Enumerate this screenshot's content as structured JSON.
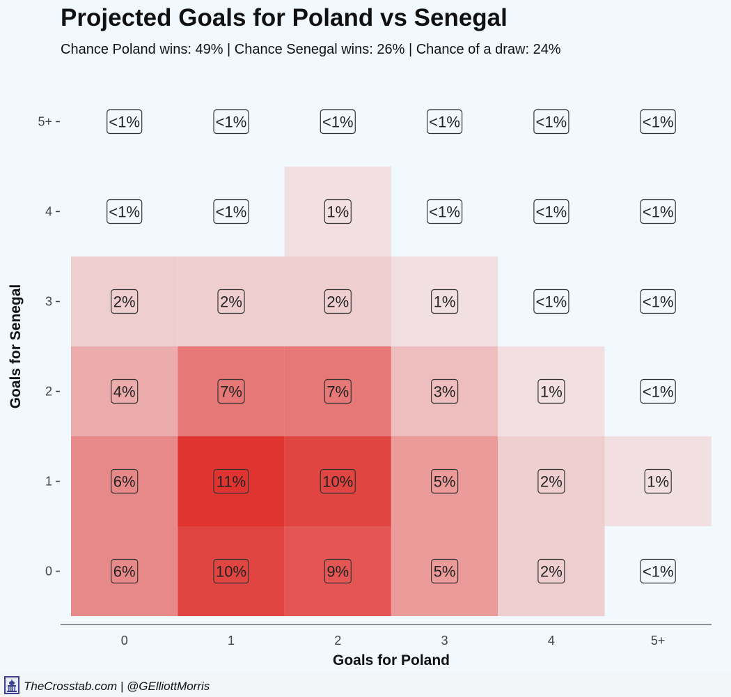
{
  "title": "Projected Goals for Poland vs Senegal",
  "subtitle": "Chance Poland wins: 49% | Chance Senegal wins: 26% | Chance of a draw: 24%",
  "footer": {
    "credit": "TheCrosstab.com | @GElliottMorris",
    "logo_icon": "capitol-icon"
  },
  "colors": {
    "background": "#f1f8fe",
    "low": "#f3f0f3",
    "high": "#df3430",
    "label_border": "#333333"
  },
  "chart_data": {
    "type": "heatmap",
    "title": "Projected Goals for Poland vs Senegal",
    "xlabel": "Goals for Poland",
    "ylabel": "Goals for Senegal",
    "x_categories": [
      "0",
      "1",
      "2",
      "3",
      "4",
      "5+"
    ],
    "y_categories": [
      "0",
      "1",
      "2",
      "3",
      "4",
      "5+"
    ],
    "value_unit": "%",
    "cells": [
      {
        "x": "0",
        "y": "0",
        "value": 6,
        "label": "6%"
      },
      {
        "x": "1",
        "y": "0",
        "value": 10,
        "label": "10%"
      },
      {
        "x": "2",
        "y": "0",
        "value": 9,
        "label": "9%"
      },
      {
        "x": "3",
        "y": "0",
        "value": 5,
        "label": "5%"
      },
      {
        "x": "4",
        "y": "0",
        "value": 2,
        "label": "2%"
      },
      {
        "x": "5+",
        "y": "0",
        "value": 0,
        "label": "<1%"
      },
      {
        "x": "0",
        "y": "1",
        "value": 6,
        "label": "6%"
      },
      {
        "x": "1",
        "y": "1",
        "value": 11,
        "label": "11%"
      },
      {
        "x": "2",
        "y": "1",
        "value": 10,
        "label": "10%"
      },
      {
        "x": "3",
        "y": "1",
        "value": 5,
        "label": "5%"
      },
      {
        "x": "4",
        "y": "1",
        "value": 2,
        "label": "2%"
      },
      {
        "x": "5+",
        "y": "1",
        "value": 1,
        "label": "1%"
      },
      {
        "x": "0",
        "y": "2",
        "value": 4,
        "label": "4%"
      },
      {
        "x": "1",
        "y": "2",
        "value": 7,
        "label": "7%"
      },
      {
        "x": "2",
        "y": "2",
        "value": 7,
        "label": "7%"
      },
      {
        "x": "3",
        "y": "2",
        "value": 3,
        "label": "3%"
      },
      {
        "x": "4",
        "y": "2",
        "value": 1,
        "label": "1%"
      },
      {
        "x": "5+",
        "y": "2",
        "value": 0,
        "label": "<1%"
      },
      {
        "x": "0",
        "y": "3",
        "value": 2,
        "label": "2%"
      },
      {
        "x": "1",
        "y": "3",
        "value": 2,
        "label": "2%"
      },
      {
        "x": "2",
        "y": "3",
        "value": 2,
        "label": "2%"
      },
      {
        "x": "3",
        "y": "3",
        "value": 1,
        "label": "1%"
      },
      {
        "x": "4",
        "y": "3",
        "value": 0,
        "label": "<1%"
      },
      {
        "x": "5+",
        "y": "3",
        "value": 0,
        "label": "<1%"
      },
      {
        "x": "0",
        "y": "4",
        "value": 0,
        "label": "<1%"
      },
      {
        "x": "1",
        "y": "4",
        "value": 0,
        "label": "<1%"
      },
      {
        "x": "2",
        "y": "4",
        "value": 1,
        "label": "1%"
      },
      {
        "x": "3",
        "y": "4",
        "value": 0,
        "label": "<1%"
      },
      {
        "x": "4",
        "y": "4",
        "value": 0,
        "label": "<1%"
      },
      {
        "x": "5+",
        "y": "4",
        "value": 0,
        "label": "<1%"
      },
      {
        "x": "0",
        "y": "5+",
        "value": 0,
        "label": "<1%"
      },
      {
        "x": "1",
        "y": "5+",
        "value": 0,
        "label": "<1%"
      },
      {
        "x": "2",
        "y": "5+",
        "value": 0,
        "label": "<1%"
      },
      {
        "x": "3",
        "y": "5+",
        "value": 0,
        "label": "<1%"
      },
      {
        "x": "4",
        "y": "5+",
        "value": 0,
        "label": "<1%"
      },
      {
        "x": "5+",
        "y": "5+",
        "value": 0,
        "label": "<1%"
      }
    ]
  }
}
